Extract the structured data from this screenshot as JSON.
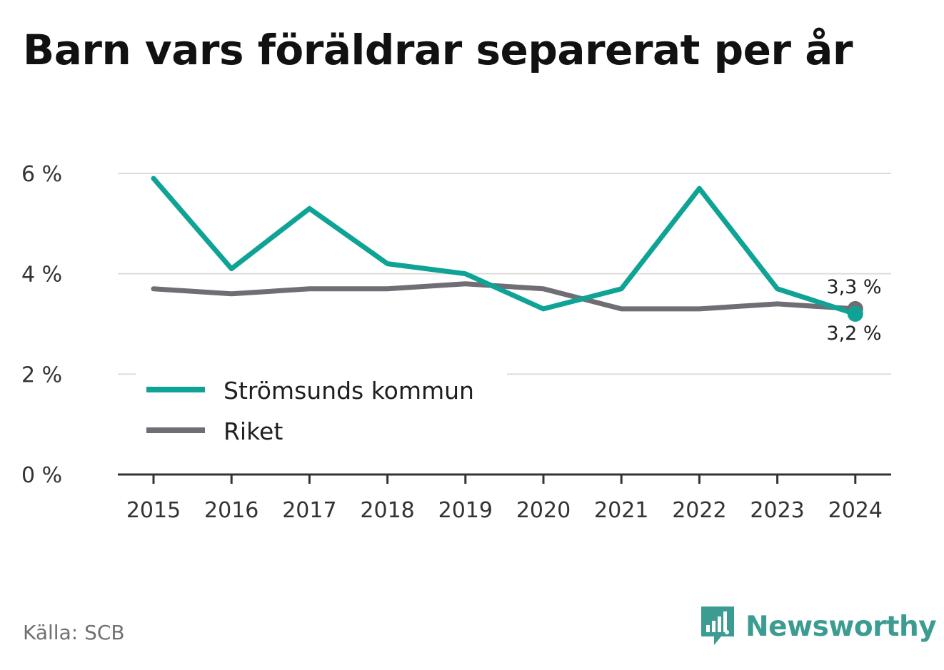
{
  "title": "Barn vars föräldrar separerat per år",
  "source": "Källa: SCB",
  "brand": "Newsworthy",
  "colors": {
    "kommun": "#0fa396",
    "riket": "#706e74",
    "grid": "#dcdcdc",
    "axis": "#333333",
    "brand": "#3c9c92"
  },
  "icons": {
    "brand_logo": "bar-chart-bubble-icon"
  },
  "chart_data": {
    "type": "line",
    "categories": [
      "2015",
      "2016",
      "2017",
      "2018",
      "2019",
      "2020",
      "2021",
      "2022",
      "2023",
      "2024"
    ],
    "series": [
      {
        "name": "Strömsunds kommun",
        "color": "#0fa396",
        "values": [
          5.9,
          4.1,
          5.3,
          4.2,
          4.0,
          3.3,
          3.7,
          5.7,
          3.7,
          3.2
        ]
      },
      {
        "name": "Riket",
        "color": "#706e74",
        "values": [
          3.7,
          3.6,
          3.7,
          3.7,
          3.8,
          3.7,
          3.3,
          3.3,
          3.4,
          3.3
        ]
      }
    ],
    "yticks": [
      {
        "value": 0,
        "label": "0 %"
      },
      {
        "value": 2,
        "label": "2 %"
      },
      {
        "value": 4,
        "label": "4 %"
      },
      {
        "value": 6,
        "label": "6 %"
      }
    ],
    "ylim": [
      0,
      6
    ],
    "end_labels": {
      "riket": "3,3 %",
      "kommun": "3,2 %"
    },
    "grid": true,
    "legend_position": "bottom-left"
  }
}
